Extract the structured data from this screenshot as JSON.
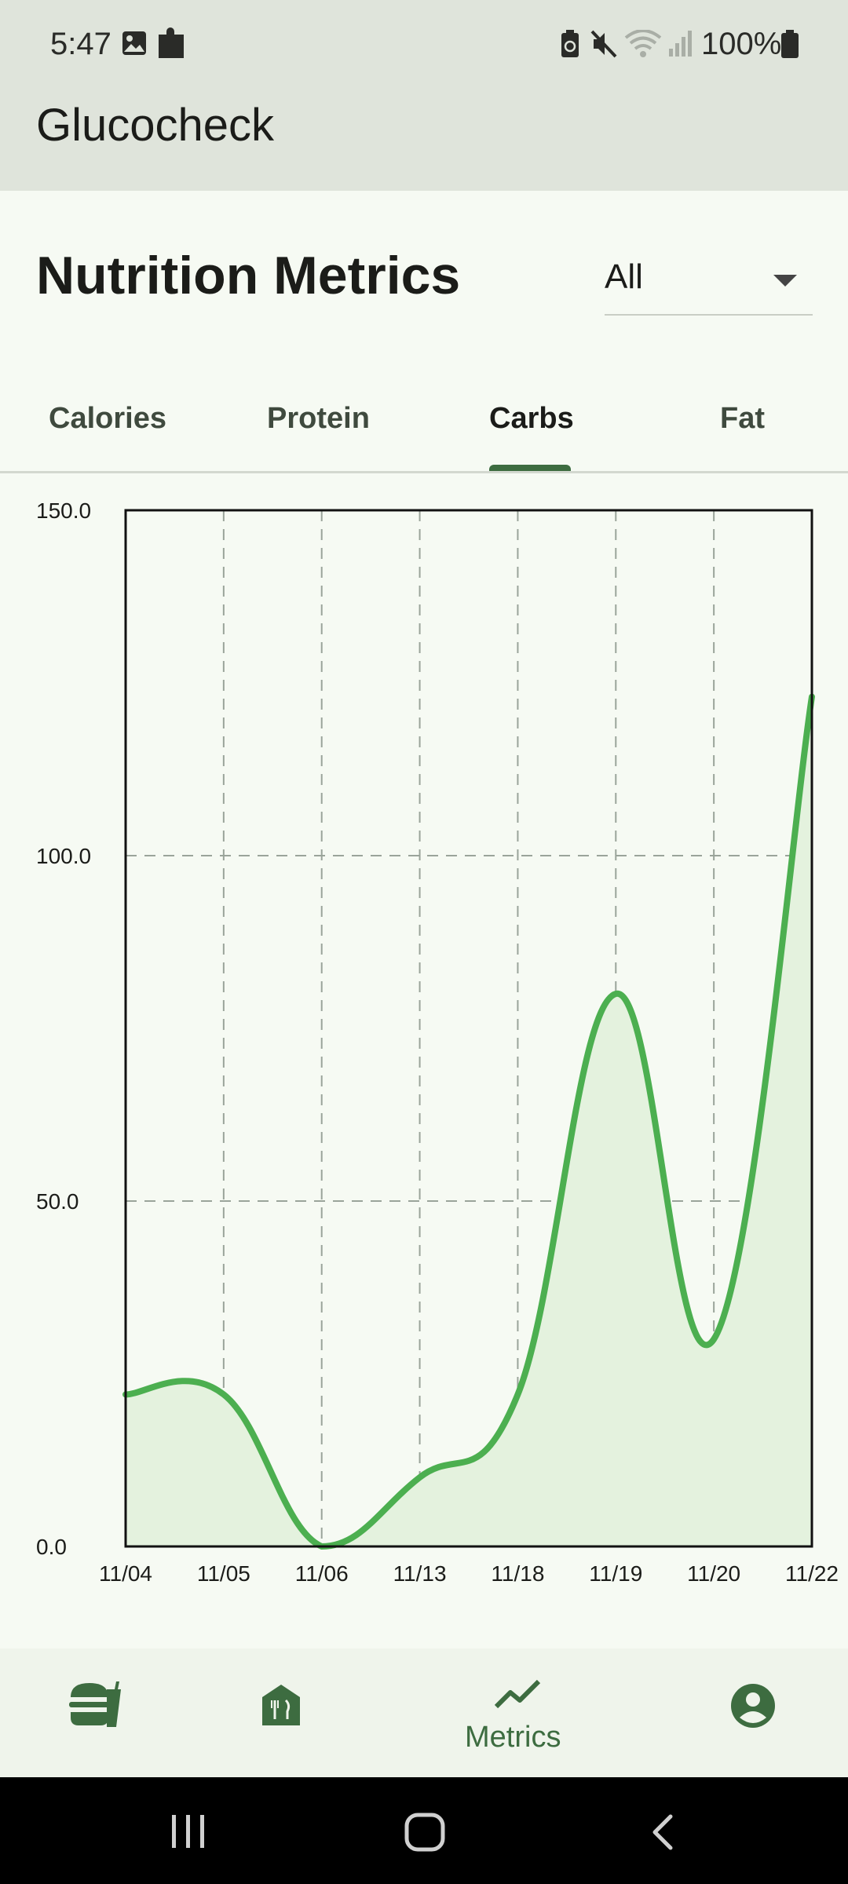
{
  "status_bar": {
    "time": "5:47",
    "battery": "100%"
  },
  "app_bar": {
    "title": "Glucocheck"
  },
  "header": {
    "title": "Nutrition Metrics",
    "filter": {
      "selected": "All"
    }
  },
  "tabs": [
    {
      "label": "Calories",
      "active": false
    },
    {
      "label": "Protein",
      "active": false
    },
    {
      "label": "Carbs",
      "active": true
    },
    {
      "label": "Fat",
      "active": false
    }
  ],
  "chart_data": {
    "type": "area",
    "categories": [
      "11/04",
      "11/05",
      "11/06",
      "11/13",
      "11/18",
      "11/19",
      "11/20",
      "11/22"
    ],
    "values": [
      22,
      22,
      0,
      10,
      22,
      80,
      30,
      123
    ],
    "ylim": [
      0,
      150
    ],
    "y_ticks": [
      "0.0",
      "50.0",
      "100.0",
      "150.0"
    ],
    "y_tick_values": [
      0,
      50,
      100,
      150
    ],
    "grid": true,
    "line_color": "#4caf50",
    "fill_color": "#e4f2de"
  },
  "bottom_nav": {
    "items": [
      {
        "icon": "meal-icon"
      },
      {
        "icon": "restaurant-icon"
      },
      {
        "icon": "metrics-icon",
        "label": "Metrics",
        "active": true
      },
      {
        "icon": "profile-icon"
      }
    ]
  },
  "colors": {
    "accent": "#3d6c40",
    "background": "#f6faf3",
    "app_bar": "#dfe4db"
  }
}
